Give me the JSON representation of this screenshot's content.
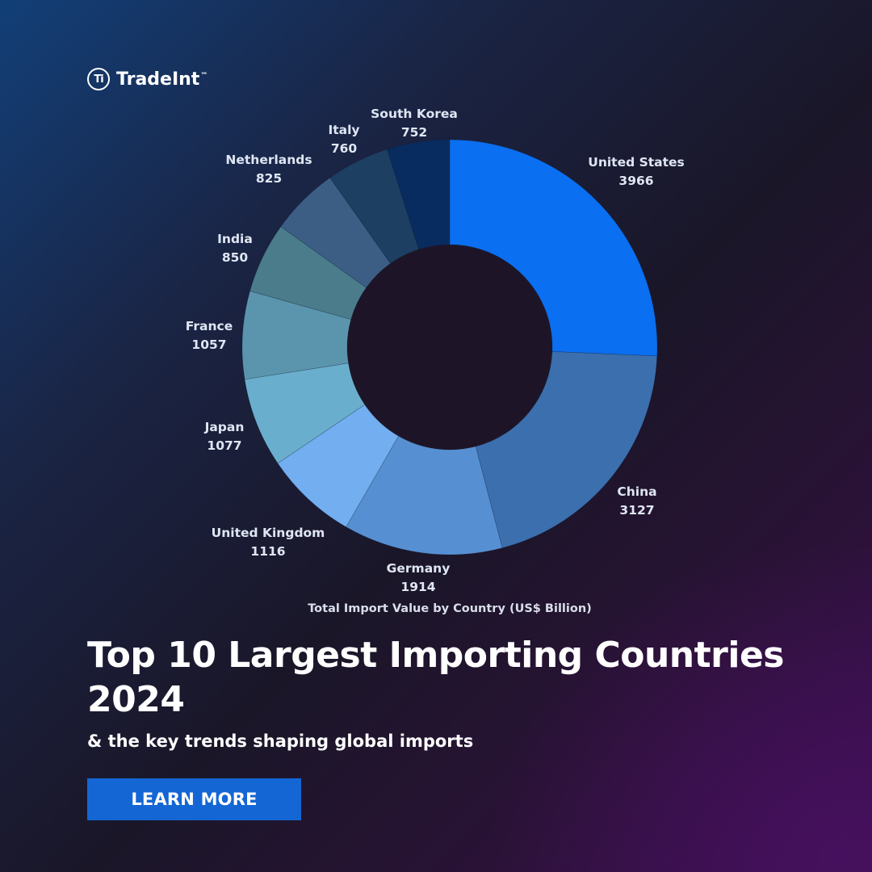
{
  "brand": {
    "logo_mark": "Ti",
    "name": "TradeInt",
    "trademark": "™"
  },
  "chart_data": {
    "type": "pie",
    "donut": true,
    "title": "Total Import Value by Country (US$ Billion)",
    "unit": "US$ Billion",
    "slices": [
      {
        "label": "United States",
        "value": 3966,
        "color": "#0a6ff0"
      },
      {
        "label": "China",
        "value": 3127,
        "color": "#3b6fae"
      },
      {
        "label": "Germany",
        "value": 1914,
        "color": "#5690d2"
      },
      {
        "label": "United Kingdom",
        "value": 1116,
        "color": "#72aef0"
      },
      {
        "label": "Japan",
        "value": 1077,
        "color": "#6aaecd"
      },
      {
        "label": "France",
        "value": 1057,
        "color": "#5a95ad"
      },
      {
        "label": "India",
        "value": 850,
        "color": "#4a7c8c"
      },
      {
        "label": "Netherlands",
        "value": 825,
        "color": "#3c5e85"
      },
      {
        "label": "Italy",
        "value": 760,
        "color": "#1c3f62"
      },
      {
        "label": "South Korea",
        "value": 752,
        "color": "#082c60"
      }
    ]
  },
  "headline": "Top 10 Largest Importing Countries 2024",
  "subheadline": "& the key trends shaping global imports",
  "cta": {
    "label": "LEARN MORE"
  }
}
